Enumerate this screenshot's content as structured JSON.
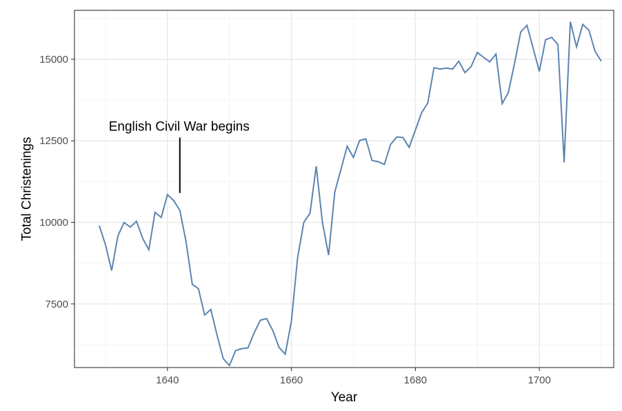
{
  "chart_data": {
    "type": "line",
    "title": "",
    "xlabel": "Year",
    "ylabel": "Total Christenings",
    "xlim": [
      1625,
      1712
    ],
    "ylim": [
      5550,
      16500
    ],
    "x_ticks": [
      1640,
      1660,
      1680,
      1700
    ],
    "y_ticks": [
      7500,
      10000,
      12500,
      15000
    ],
    "x_tick_labels": [
      "1640",
      "1660",
      "1680",
      "1700"
    ],
    "y_tick_labels": [
      "7500",
      "10000",
      "12500",
      "15000"
    ],
    "grid": true,
    "line_color": "#5b84b1",
    "series": [
      {
        "x": [
          1629,
          1630,
          1631,
          1632,
          1633,
          1634,
          1635,
          1636,
          1637,
          1638,
          1639,
          1640,
          1641,
          1642,
          1643,
          1644,
          1645,
          1646,
          1647,
          1648,
          1649,
          1650,
          1651,
          1652,
          1653,
          1654,
          1655,
          1656,
          1657,
          1658,
          1659,
          1660,
          1661,
          1662,
          1663,
          1664,
          1665,
          1666,
          1667,
          1668,
          1669,
          1670,
          1671,
          1672,
          1673,
          1674,
          1675,
          1676,
          1677,
          1678,
          1679,
          1680,
          1681,
          1682,
          1683,
          1684,
          1685,
          1686,
          1687,
          1688,
          1689,
          1690,
          1691,
          1692,
          1693,
          1694,
          1695,
          1696,
          1697,
          1698,
          1699,
          1700,
          1701,
          1702,
          1703,
          1704,
          1705,
          1706,
          1707,
          1708,
          1709,
          1710
        ],
        "values": [
          9901,
          9315,
          8524,
          9584,
          9997,
          9855,
          10034,
          9512,
          9160,
          10311,
          10150,
          10850,
          10670,
          10370,
          9410,
          8104,
          7966,
          7163,
          7332,
          6544,
          5825,
          5612,
          6071,
          6128,
          6155,
          6620,
          7004,
          7050,
          6685,
          6170,
          5959,
          6978,
          8920,
          10001,
          10280,
          11720,
          10000,
          8997,
          10936,
          11630,
          12335,
          11990,
          12510,
          12560,
          11900,
          11860,
          11780,
          12390,
          12620,
          12600,
          12300,
          12830,
          13360,
          13660,
          14740,
          14700,
          14730,
          14700,
          14940,
          14590,
          14780,
          15210,
          15060,
          14920,
          15160,
          13640,
          13980,
          14880,
          15840,
          16040,
          15340,
          14630,
          15600,
          15670,
          15450,
          11840,
          16150,
          15380,
          16070,
          15890,
          15240,
          14940
        ]
      }
    ],
    "annotation": {
      "text": "English Civil War begins",
      "x": 1642,
      "y_start": 10900,
      "y_end": 12600
    }
  }
}
